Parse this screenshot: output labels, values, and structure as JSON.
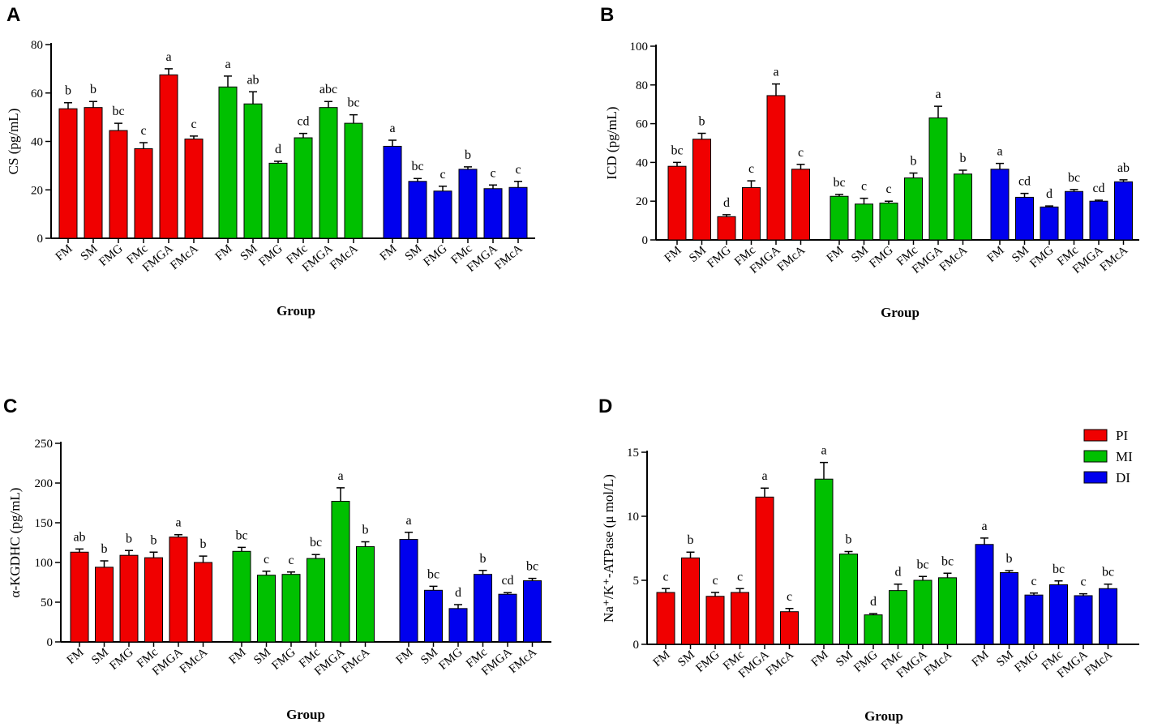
{
  "colors": {
    "PI": "#f00000",
    "MI": "#00c000",
    "DI": "#0000ee"
  },
  "legend": [
    {
      "key": "PI",
      "label": "PI"
    },
    {
      "key": "MI",
      "label": "MI"
    },
    {
      "key": "DI",
      "label": "DI"
    }
  ],
  "chart_data": [
    {
      "type": "bar",
      "panel": "A",
      "xlabel": "Group",
      "ylabel": "CS (pg/mL)",
      "ylim": [
        0,
        80
      ],
      "yticks": [
        0,
        20,
        40,
        60,
        80
      ],
      "categories": [
        "FM",
        "SM",
        "FMG",
        "FMc",
        "FMGA",
        "FMcA"
      ],
      "series": [
        {
          "name": "PI",
          "values": [
            53.5,
            54,
            44.5,
            37,
            67.5,
            41
          ],
          "errors": [
            2.5,
            2.5,
            3,
            2.5,
            2.5,
            1.2
          ],
          "letters": [
            "b",
            "b",
            "bc",
            "c",
            "a",
            "c"
          ]
        },
        {
          "name": "MI",
          "values": [
            62.5,
            55.5,
            31,
            41.5,
            54,
            47.5
          ],
          "errors": [
            4.5,
            5,
            0.8,
            1.8,
            2.5,
            3.5
          ],
          "letters": [
            "a",
            "ab",
            "d",
            "cd",
            "abc",
            "bc"
          ]
        },
        {
          "name": "DI",
          "values": [
            38,
            23.5,
            19.5,
            28.5,
            20.5,
            21
          ],
          "errors": [
            2.5,
            1.2,
            2,
            1,
            1.5,
            2.5
          ],
          "letters": [
            "a",
            "bc",
            "c",
            "b",
            "c",
            "c"
          ]
        }
      ]
    },
    {
      "type": "bar",
      "panel": "B",
      "xlabel": "Group",
      "ylabel": "ICD (pg/mL)",
      "ylim": [
        0,
        100
      ],
      "yticks": [
        0,
        20,
        40,
        60,
        80,
        100
      ],
      "categories": [
        "FM",
        "SM",
        "FMG",
        "FMc",
        "FMGA",
        "FMcA"
      ],
      "series": [
        {
          "name": "PI",
          "values": [
            38,
            52,
            12,
            27,
            74.5,
            36.5
          ],
          "errors": [
            2,
            3,
            1,
            3.5,
            6,
            2.5
          ],
          "letters": [
            "bc",
            "b",
            "d",
            "c",
            "a",
            "c"
          ]
        },
        {
          "name": "MI",
          "values": [
            22.5,
            18.5,
            19,
            32,
            63,
            34
          ],
          "errors": [
            1,
            3,
            1,
            2.5,
            6,
            2
          ],
          "letters": [
            "bc",
            "c",
            "c",
            "b",
            "a",
            "b"
          ]
        },
        {
          "name": "DI",
          "values": [
            36.5,
            22,
            17,
            25,
            20,
            30
          ],
          "errors": [
            3,
            2,
            0.5,
            1,
            0.5,
            1
          ],
          "letters": [
            "a",
            "cd",
            "d",
            "bc",
            "cd",
            "ab"
          ]
        }
      ]
    },
    {
      "type": "bar",
      "panel": "C",
      "xlabel": "Group",
      "ylabel": "α-KGDHC (pg/mL)",
      "ylim": [
        0,
        250
      ],
      "yticks": [
        0,
        50,
        100,
        150,
        200,
        250
      ],
      "categories": [
        "FM",
        "SM",
        "FMG",
        "FMc",
        "FMGA",
        "FMcA"
      ],
      "series": [
        {
          "name": "PI",
          "values": [
            113,
            94,
            109,
            106,
            132,
            100
          ],
          "errors": [
            4,
            8,
            6,
            7,
            3,
            8
          ],
          "letters": [
            "ab",
            "b",
            "b",
            "b",
            "a",
            "b"
          ]
        },
        {
          "name": "MI",
          "values": [
            114,
            84,
            85,
            105,
            177,
            120
          ],
          "errors": [
            5,
            5,
            3,
            5,
            17,
            6
          ],
          "letters": [
            "bc",
            "c",
            "c",
            "bc",
            "a",
            "b"
          ]
        },
        {
          "name": "DI",
          "values": [
            129,
            65,
            42,
            85,
            60,
            77
          ],
          "errors": [
            9,
            5,
            5,
            5,
            2,
            3
          ],
          "letters": [
            "a",
            "bc",
            "d",
            "b",
            "cd",
            "bc"
          ]
        }
      ]
    },
    {
      "type": "bar",
      "panel": "D",
      "xlabel": "Group",
      "ylabel": "Na⁺/K⁺-ATPase (μ mol/L)",
      "ylim": [
        0,
        15
      ],
      "yticks": [
        0,
        5,
        10,
        15
      ],
      "categories": [
        "FM",
        "SM",
        "FMG",
        "FMc",
        "FMGA",
        "FMcA"
      ],
      "series": [
        {
          "name": "PI",
          "values": [
            4.05,
            6.75,
            3.75,
            4.05,
            11.5,
            2.55
          ],
          "errors": [
            0.3,
            0.45,
            0.3,
            0.3,
            0.7,
            0.25
          ],
          "letters": [
            "c",
            "b",
            "c",
            "c",
            "a",
            "c"
          ]
        },
        {
          "name": "MI",
          "values": [
            12.9,
            7.05,
            2.3,
            4.2,
            5,
            5.2
          ],
          "errors": [
            1.3,
            0.2,
            0.1,
            0.5,
            0.3,
            0.35
          ],
          "letters": [
            "a",
            "b",
            "d",
            "d",
            "bc",
            "bc"
          ]
        },
        {
          "name": "DI",
          "values": [
            7.8,
            5.6,
            3.85,
            4.65,
            3.8,
            4.35
          ],
          "errors": [
            0.5,
            0.15,
            0.15,
            0.3,
            0.15,
            0.35
          ],
          "letters": [
            "a",
            "b",
            "c",
            "bc",
            "c",
            "bc"
          ]
        }
      ]
    }
  ]
}
